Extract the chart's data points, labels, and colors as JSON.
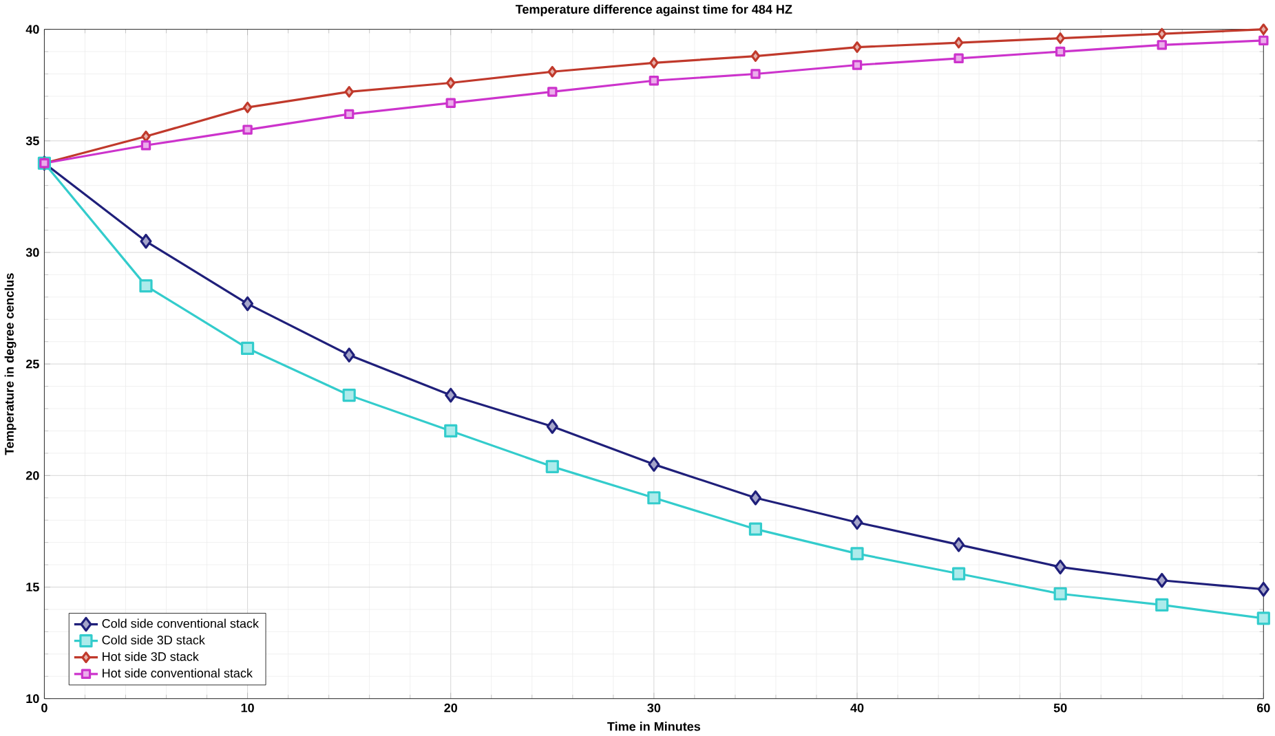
{
  "chart_data": {
    "type": "line",
    "title": "Temperature difference against time for 484 HZ",
    "xlabel": "Time in Minutes",
    "ylabel": "Temperature in degree cenclus",
    "x": [
      0,
      5,
      10,
      15,
      20,
      25,
      30,
      35,
      40,
      45,
      50,
      55,
      60
    ],
    "series": [
      {
        "name": "Cold side conventional stack",
        "color": "#1f1f7a",
        "marker": "diamond",
        "values": [
          34,
          30.5,
          27.7,
          25.4,
          23.6,
          22.2,
          20.5,
          19.0,
          17.9,
          16.9,
          15.9,
          15.3,
          14.9
        ]
      },
      {
        "name": "Cold side 3D stack",
        "color": "#33cccc",
        "marker": "square",
        "values": [
          34,
          28.5,
          25.7,
          23.6,
          22.0,
          20.4,
          19.0,
          17.6,
          16.5,
          15.6,
          14.7,
          14.2,
          13.6
        ]
      },
      {
        "name": "Hot side 3D stack",
        "color": "#c0392b",
        "marker": "diamond",
        "values": [
          34,
          35.2,
          36.5,
          37.2,
          37.6,
          38.1,
          38.5,
          38.8,
          39.2,
          39.4,
          39.6,
          39.8,
          40.0
        ]
      },
      {
        "name": "Hot side conventional stack",
        "color": "#cc33cc",
        "marker": "square",
        "values": [
          34,
          34.8,
          35.5,
          36.2,
          36.7,
          37.2,
          37.7,
          38.0,
          38.4,
          38.7,
          39.0,
          39.3,
          39.5
        ]
      }
    ],
    "xlim": [
      0,
      60
    ],
    "ylim": [
      10,
      40
    ],
    "xticks": [
      0,
      10,
      20,
      30,
      40,
      50,
      60
    ],
    "yticks": [
      10,
      15,
      20,
      25,
      30,
      35,
      40
    ],
    "grid": true,
    "legend": "bottom left",
    "line_style": "solid"
  }
}
